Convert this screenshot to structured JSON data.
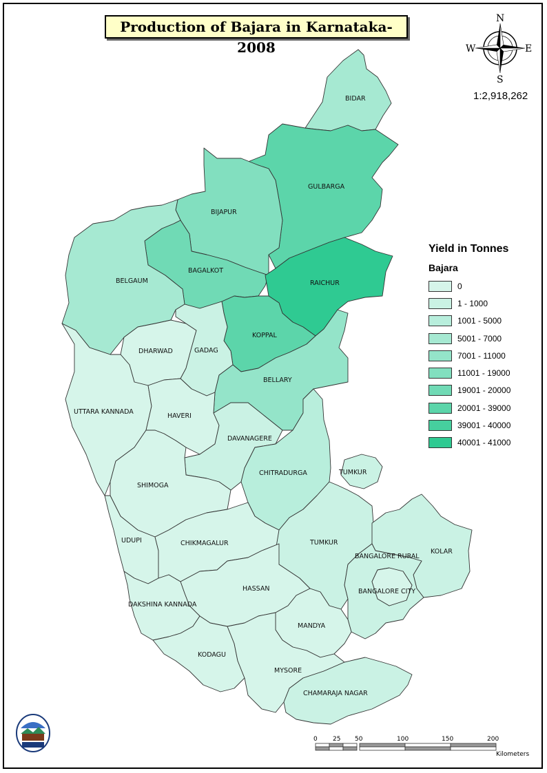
{
  "title": "Production of Bajara in Karnataka-2008",
  "scale": "1:2,918,262",
  "compass": {
    "n": "N",
    "s": "S",
    "e": "E",
    "w": "W"
  },
  "legend": {
    "title": "Yield in Tonnes",
    "subtitle": "Bajara",
    "classes": [
      {
        "label": "0",
        "color": "#d6f5ea"
      },
      {
        "label": "1 - 1000",
        "color": "#caf2e4"
      },
      {
        "label": "1001 - 5000",
        "color": "#b8eedc"
      },
      {
        "label": "5001 - 7000",
        "color": "#a6e9d2"
      },
      {
        "label": "7001 - 11000",
        "color": "#94e4c9"
      },
      {
        "label": "11001 - 19000",
        "color": "#82dfbf"
      },
      {
        "label": "19001 - 20000",
        "color": "#70dab5"
      },
      {
        "label": "20001 - 39000",
        "color": "#5cd5aa"
      },
      {
        "label": "39001 - 40000",
        "color": "#46cf9e"
      },
      {
        "label": "40001 - 41000",
        "color": "#2fca92"
      }
    ]
  },
  "districts": [
    {
      "name": "BIDAR",
      "color": "#a6e9d2"
    },
    {
      "name": "GULBARGA",
      "color": "#5cd5aa"
    },
    {
      "name": "BIJAPUR",
      "color": "#82dfbf"
    },
    {
      "name": "BAGALKOT",
      "color": "#70dab5"
    },
    {
      "name": "BELGAUM",
      "color": "#a6e9d2"
    },
    {
      "name": "RAICHUR",
      "color": "#2fca92"
    },
    {
      "name": "KOPPAL",
      "color": "#5cd5aa"
    },
    {
      "name": "DHARWAD",
      "color": "#d6f5ea"
    },
    {
      "name": "GADAG",
      "color": "#caf2e4"
    },
    {
      "name": "BELLARY",
      "color": "#94e4c9"
    },
    {
      "name": "UTTARA KANNADA",
      "color": "#d6f5ea"
    },
    {
      "name": "HAVERI",
      "color": "#d6f5ea"
    },
    {
      "name": "DAVANAGERE",
      "color": "#caf2e4"
    },
    {
      "name": "CHITRADURGA",
      "color": "#b8eedc"
    },
    {
      "name": "SHIMOGA",
      "color": "#d6f5ea"
    },
    {
      "name": "UDUPI",
      "color": "#d6f5ea"
    },
    {
      "name": "CHIKMAGALUR",
      "color": "#d6f5ea"
    },
    {
      "name": "TUMKUR",
      "color": "#caf2e4"
    },
    {
      "name": "KOLAR",
      "color": "#caf2e4"
    },
    {
      "name": "BANGALORE RURAL",
      "color": "#caf2e4"
    },
    {
      "name": "BANGALORE CITY",
      "color": "#d6f5ea"
    },
    {
      "name": "HASSAN",
      "color": "#d6f5ea"
    },
    {
      "name": "DAKSHINA KANNADA",
      "color": "#d6f5ea"
    },
    {
      "name": "MANDYA",
      "color": "#d6f5ea"
    },
    {
      "name": "KODAGU",
      "color": "#d6f5ea"
    },
    {
      "name": "MYSORE",
      "color": "#d6f5ea"
    },
    {
      "name": "CHAMARAJA NAGAR",
      "color": "#caf2e4"
    }
  ],
  "tumkur_enclave_label": "TUMKUR",
  "scalebar": {
    "ticks": [
      "0",
      "25",
      "50",
      "100",
      "150",
      "200"
    ],
    "unit": "Kilometers"
  }
}
